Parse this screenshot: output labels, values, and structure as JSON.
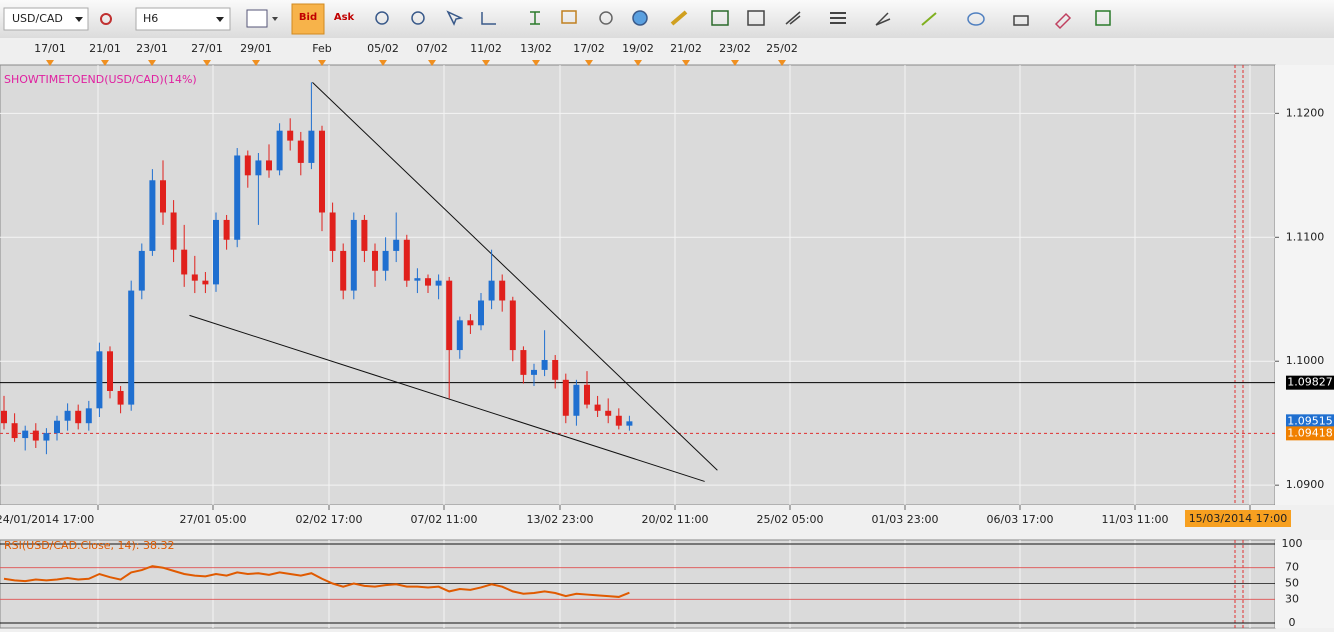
{
  "toolbar": {
    "symbol": "USD/CAD",
    "timeframe": "H6",
    "bid": "Bid",
    "ask": "Ask"
  },
  "chart_data": {
    "type": "candlestick",
    "indicator_label": "SHOWTIMETOEND(USD/CAD)(14%)",
    "top_dates": [
      "17/01",
      "21/01",
      "23/01",
      "27/01",
      "29/01",
      "Feb",
      "05/02",
      "07/02",
      "11/02",
      "13/02",
      "17/02",
      "19/02",
      "21/02",
      "23/02",
      "25/02"
    ],
    "x_labels": [
      "24/01/2014 17:00",
      "27/01 05:00",
      "02/02 17:00",
      "07/02 11:00",
      "13/02 23:00",
      "20/02 11:00",
      "25/02 05:00",
      "01/03 23:00",
      "06/03 17:00",
      "11/03 11:00"
    ],
    "highlight_x_label": "15/03/2014 17:00",
    "up_color": "#1f6fd0",
    "down_color": "#e0201c",
    "candles": [
      [
        1.096,
        1.0972,
        1.0945,
        1.095
      ],
      [
        1.095,
        1.0958,
        1.0935,
        1.0938
      ],
      [
        1.0938,
        1.0948,
        1.0928,
        1.0944
      ],
      [
        1.0944,
        1.095,
        1.093,
        1.0936
      ],
      [
        1.0936,
        1.0946,
        1.0925,
        1.0942
      ],
      [
        1.0942,
        1.0956,
        1.0936,
        1.0952
      ],
      [
        1.0952,
        1.0966,
        1.0944,
        1.096
      ],
      [
        1.096,
        1.0965,
        1.0945,
        1.095
      ],
      [
        1.095,
        1.0968,
        1.0944,
        1.0962
      ],
      [
        1.0962,
        1.1015,
        1.0955,
        1.1008
      ],
      [
        1.1008,
        1.1012,
        1.097,
        1.0976
      ],
      [
        1.0976,
        1.098,
        1.0958,
        1.0965
      ],
      [
        1.0965,
        1.1065,
        1.096,
        1.1057
      ],
      [
        1.1057,
        1.1095,
        1.105,
        1.1089
      ],
      [
        1.1089,
        1.1155,
        1.1085,
        1.1146
      ],
      [
        1.1146,
        1.1162,
        1.111,
        1.112
      ],
      [
        1.112,
        1.113,
        1.108,
        1.109
      ],
      [
        1.109,
        1.111,
        1.106,
        1.107
      ],
      [
        1.107,
        1.1085,
        1.1055,
        1.1065
      ],
      [
        1.1065,
        1.1072,
        1.1055,
        1.1062
      ],
      [
        1.1062,
        1.112,
        1.1056,
        1.1114
      ],
      [
        1.1114,
        1.1118,
        1.109,
        1.1098
      ],
      [
        1.1098,
        1.1172,
        1.1092,
        1.1166
      ],
      [
        1.1166,
        1.117,
        1.114,
        1.115
      ],
      [
        1.115,
        1.1168,
        1.111,
        1.1162
      ],
      [
        1.1162,
        1.1175,
        1.1148,
        1.1154
      ],
      [
        1.1154,
        1.1192,
        1.115,
        1.1186
      ],
      [
        1.1186,
        1.1196,
        1.117,
        1.1178
      ],
      [
        1.1178,
        1.1185,
        1.115,
        1.116
      ],
      [
        1.116,
        1.1225,
        1.1155,
        1.1186
      ],
      [
        1.1186,
        1.119,
        1.1105,
        1.112
      ],
      [
        1.112,
        1.1128,
        1.108,
        1.1089
      ],
      [
        1.1089,
        1.1095,
        1.105,
        1.1057
      ],
      [
        1.1057,
        1.112,
        1.105,
        1.1114
      ],
      [
        1.1114,
        1.1118,
        1.108,
        1.1089
      ],
      [
        1.1089,
        1.1095,
        1.106,
        1.1073
      ],
      [
        1.1073,
        1.11,
        1.1065,
        1.1089
      ],
      [
        1.1089,
        1.112,
        1.108,
        1.1098
      ],
      [
        1.1098,
        1.1102,
        1.106,
        1.1065
      ],
      [
        1.1065,
        1.1075,
        1.1055,
        1.1067
      ],
      [
        1.1067,
        1.107,
        1.1055,
        1.1061
      ],
      [
        1.1061,
        1.107,
        1.105,
        1.1065
      ],
      [
        1.1065,
        1.1068,
        1.097,
        1.1009
      ],
      [
        1.1009,
        1.1036,
        1.1002,
        1.1033
      ],
      [
        1.1033,
        1.1038,
        1.1022,
        1.1029
      ],
      [
        1.1029,
        1.1055,
        1.1025,
        1.1049
      ],
      [
        1.1049,
        1.109,
        1.1042,
        1.1065
      ],
      [
        1.1065,
        1.107,
        1.104,
        1.1049
      ],
      [
        1.1049,
        1.1052,
        1.1,
        1.1009
      ],
      [
        1.1009,
        1.1012,
        1.0982,
        1.0989
      ],
      [
        1.0989,
        1.0998,
        1.098,
        1.0993
      ],
      [
        1.0993,
        1.1025,
        1.0988,
        1.1001
      ],
      [
        1.1001,
        1.1005,
        1.0978,
        1.0985
      ],
      [
        1.0985,
        1.099,
        1.095,
        1.0956
      ],
      [
        1.0956,
        1.0985,
        1.0948,
        1.0981
      ],
      [
        1.0981,
        1.0992,
        1.0962,
        1.0965
      ],
      [
        1.0965,
        1.0972,
        1.0955,
        1.096
      ],
      [
        1.096,
        1.097,
        1.095,
        1.0956
      ],
      [
        1.0956,
        1.0962,
        1.0945,
        1.0948
      ],
      [
        1.0948,
        1.0956,
        1.0944,
        1.09515
      ]
    ],
    "ylim": [
      1.0884,
      1.1239
    ],
    "yticks": [
      {
        "value": 1.12,
        "label": "1.1200"
      },
      {
        "value": 1.11,
        "label": "1.1100"
      },
      {
        "value": 1.1,
        "label": "1.1000"
      },
      {
        "value": 1.09,
        "label": "1.0900"
      }
    ],
    "levels": [
      {
        "value": 1.09827,
        "label": "1.09827",
        "color": "#000000",
        "line": "solid"
      },
      {
        "value": 1.09515,
        "label": "1.09515",
        "color": "#1f6fd0",
        "line": "none"
      },
      {
        "value": 1.09418,
        "label": "1.09418",
        "color": "#f08000",
        "line": "dashed"
      }
    ],
    "trendlines": [
      {
        "from": [
          29.1,
          1.1225
        ],
        "to": [
          67.3,
          1.0912
        ]
      },
      {
        "from": [
          17.5,
          1.1037
        ],
        "to": [
          66.1,
          1.0903
        ]
      }
    ],
    "rsi": {
      "title": "RSI(USD/CAD.Close, 14): 38.32",
      "color": "#e05a00",
      "ylim": [
        0,
        100
      ],
      "yticks": [
        100,
        70,
        50,
        30,
        0
      ],
      "values": [
        56,
        54,
        53,
        55,
        54,
        55,
        57,
        55,
        56,
        62,
        58,
        55,
        64,
        67,
        72,
        70,
        66,
        62,
        60,
        59,
        62,
        60,
        64,
        62,
        63,
        61,
        64,
        62,
        60,
        63,
        56,
        50,
        46,
        50,
        47,
        46,
        48,
        49,
        46,
        46,
        45,
        46,
        40,
        43,
        42,
        45,
        49,
        46,
        40,
        37,
        38,
        40,
        38,
        34,
        37,
        36,
        35,
        34,
        33,
        38.32
      ]
    }
  }
}
